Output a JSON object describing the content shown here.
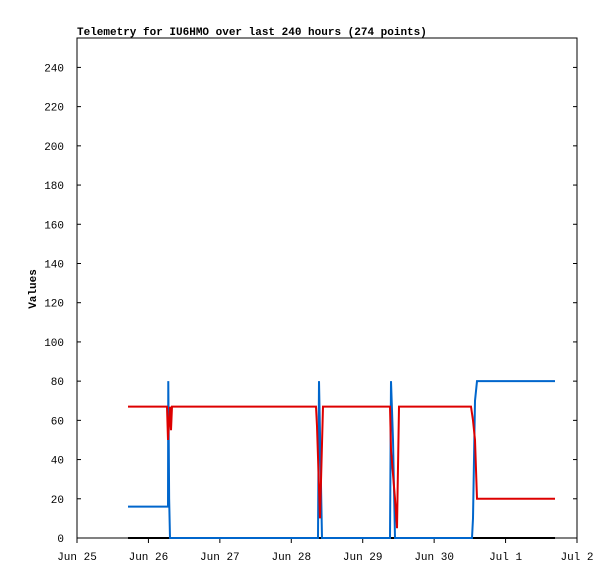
{
  "chart_data": {
    "type": "line",
    "title": "Telemetry for IU6HMO over last 240 hours (274 points)",
    "y_label": "Values",
    "xlim": [
      0,
      7
    ],
    "xticks": [
      {
        "value": 0,
        "label": "Jun 25"
      },
      {
        "value": 1,
        "label": "Jun 26"
      },
      {
        "value": 2,
        "label": "Jun 27"
      },
      {
        "value": 3,
        "label": "Jun 28"
      },
      {
        "value": 4,
        "label": "Jun 29"
      },
      {
        "value": 5,
        "label": "Jun 30"
      },
      {
        "value": 6,
        "label": "Jul 1"
      },
      {
        "value": 7,
        "label": "Jul 2"
      }
    ],
    "ylim": [
      0,
      255
    ],
    "yticks": [
      0,
      20,
      40,
      60,
      80,
      100,
      120,
      140,
      160,
      180,
      200,
      220,
      240
    ],
    "series": [
      {
        "color": "#000000",
        "x": [
          0.714,
          6.692
        ],
        "values": [
          0,
          0
        ]
      },
      {
        "color": "#0066cc",
        "x": [
          0.714,
          1.274,
          1.278,
          1.29,
          1.302,
          3.374,
          3.388,
          3.43,
          4.382,
          4.396,
          4.424,
          4.452,
          5.53,
          5.544,
          5.572,
          5.6,
          6.692
        ],
        "values": [
          16,
          16,
          80,
          20,
          0,
          0,
          80,
          0,
          0,
          80,
          50,
          0,
          0,
          10,
          70,
          80,
          80
        ]
      },
      {
        "color": "#dd0000",
        "x": [
          0.714,
          1.26,
          1.274,
          1.302,
          1.316,
          1.33,
          3.346,
          3.36,
          3.402,
          3.444,
          4.382,
          4.396,
          4.452,
          4.48,
          4.508,
          5.516,
          5.544,
          5.572,
          5.6,
          6.692
        ],
        "values": [
          67,
          67,
          50,
          67,
          55,
          67,
          67,
          57,
          10,
          67,
          67,
          45,
          20,
          5,
          67,
          67,
          60,
          50,
          20,
          20
        ]
      }
    ]
  }
}
